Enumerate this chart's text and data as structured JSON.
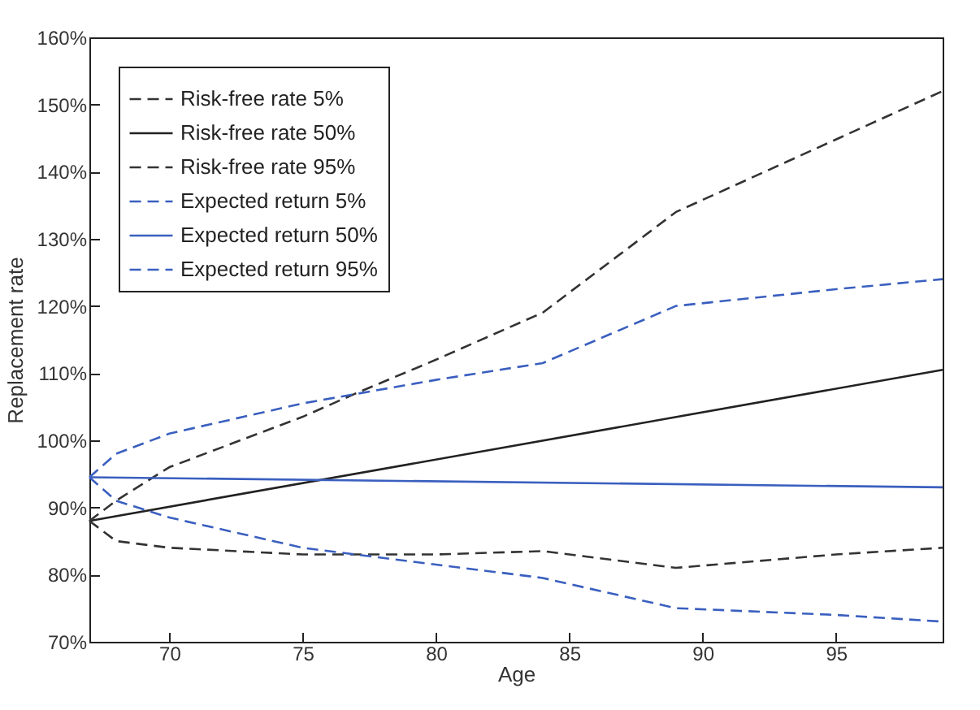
{
  "chart_data": {
    "type": "line",
    "xlabel": "Age",
    "ylabel": "Replacement rate",
    "xlim": [
      67,
      99
    ],
    "xticks": [
      70,
      75,
      80,
      85,
      90,
      95
    ],
    "ylim": [
      70,
      160
    ],
    "yticks": [
      {
        "value": 70,
        "label": "70%"
      },
      {
        "value": 80,
        "label": "80%"
      },
      {
        "value": 90,
        "label": "90%"
      },
      {
        "value": 100,
        "label": "100%"
      },
      {
        "value": 110,
        "label": "110%"
      },
      {
        "value": 120,
        "label": "120%"
      },
      {
        "value": 130,
        "label": "130%"
      },
      {
        "value": 140,
        "label": "140%"
      },
      {
        "value": 150,
        "label": "150%"
      },
      {
        "value": 160,
        "label": "160%"
      }
    ],
    "grid": false,
    "legend": "top left",
    "marker": "none",
    "series": [
      {
        "name": "Risk-free rate 5%",
        "color": "#333333",
        "line_style": "dashed",
        "x": [
          67,
          68,
          70,
          75,
          80,
          84,
          89,
          95,
          99
        ],
        "values": [
          88,
          85,
          84,
          83,
          83,
          83.5,
          81,
          83,
          84
        ]
      },
      {
        "name": "Risk-free rate 50%",
        "color": "#222222",
        "line_style": "solid",
        "x": [
          67,
          99
        ],
        "values": [
          88,
          110.5
        ]
      },
      {
        "name": "Risk-free rate 95%",
        "color": "#333333",
        "line_style": "dashed",
        "x": [
          67,
          68,
          70,
          75,
          77,
          80,
          84,
          89,
          99
        ],
        "values": [
          88,
          91,
          96,
          103.5,
          107,
          112,
          119,
          134,
          152
        ]
      },
      {
        "name": "Expected return 5%",
        "color": "#3a5fbf",
        "line_style": "dashed",
        "x": [
          67,
          68,
          70,
          75,
          80,
          84,
          89,
          95,
          99
        ],
        "values": [
          94.5,
          91,
          88.5,
          84,
          81.5,
          79.5,
          75,
          74,
          73
        ]
      },
      {
        "name": "Expected return 50%",
        "color": "#3a5fbf",
        "line_style": "solid",
        "x": [
          67,
          99
        ],
        "values": [
          94.5,
          93
        ]
      },
      {
        "name": "Expected return 95%",
        "color": "#3a5fbf",
        "line_style": "dashed",
        "x": [
          67,
          68,
          70,
          75,
          80,
          84,
          89,
          95,
          99
        ],
        "values": [
          94.5,
          98,
          101,
          105.5,
          109,
          111.5,
          120,
          122.5,
          124
        ]
      }
    ]
  }
}
